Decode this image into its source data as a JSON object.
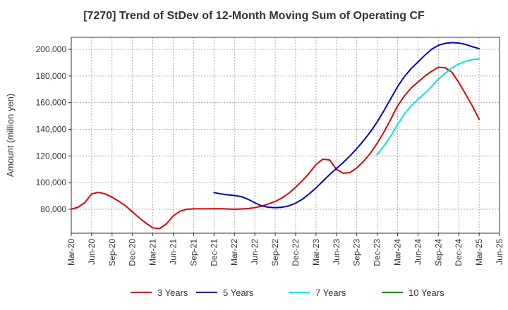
{
  "chart_data": {
    "type": "line",
    "title": "[7270]  Trend of StDev of 12-Month Moving Sum of Operating CF",
    "xlabel": "",
    "ylabel": "Amount (million yen)",
    "x_tick_labels": [
      "Mar-20",
      "Jun-20",
      "Sep-20",
      "Dec-20",
      "Mar-21",
      "Jun-21",
      "Sep-21",
      "Dec-21",
      "Mar-22",
      "Jun-22",
      "Sep-22",
      "Dec-22",
      "Mar-23",
      "Jun-23",
      "Sep-23",
      "Dec-23",
      "Mar-24",
      "Jun-24",
      "Sep-24",
      "Dec-24",
      "Mar-25",
      "Jun-25"
    ],
    "y_tick_labels": [
      "80,000",
      "100,000",
      "120,000",
      "140,000",
      "160,000",
      "180,000",
      "200,000"
    ],
    "y_ticks": [
      80000,
      100000,
      120000,
      140000,
      160000,
      180000,
      200000
    ],
    "ylim": [
      62000,
      209000
    ],
    "xlim": [
      "2020-03",
      "2025-06"
    ],
    "grid": true,
    "legend_position": "bottom",
    "series": [
      {
        "name": "3 Years",
        "color": "#dd0000",
        "x": [
          "2020-03",
          "2020-04",
          "2020-05",
          "2020-06",
          "2020-07",
          "2020-08",
          "2020-09",
          "2020-10",
          "2020-11",
          "2020-12",
          "2021-01",
          "2021-02",
          "2021-03",
          "2021-04",
          "2021-05",
          "2021-06",
          "2021-07",
          "2021-08",
          "2021-09",
          "2021-10",
          "2021-11",
          "2021-12",
          "2022-01",
          "2022-02",
          "2022-03",
          "2022-04",
          "2022-05",
          "2022-06",
          "2022-07",
          "2022-08",
          "2022-09",
          "2022-10",
          "2022-11",
          "2022-12",
          "2023-01",
          "2023-02",
          "2023-03",
          "2023-04",
          "2023-05",
          "2023-06",
          "2023-07",
          "2023-08",
          "2023-09",
          "2023-10",
          "2023-11",
          "2023-12",
          "2024-01",
          "2024-02",
          "2024-03",
          "2024-04",
          "2024-05",
          "2024-06",
          "2024-07",
          "2024-08",
          "2024-09",
          "2024-10",
          "2024-11",
          "2024-12",
          "2025-01",
          "2025-02",
          "2025-03"
        ],
        "values": [
          80000,
          81500,
          85000,
          91500,
          92700,
          91500,
          89000,
          86000,
          82500,
          78000,
          73500,
          69500,
          66000,
          65500,
          69000,
          75000,
          78500,
          80000,
          80300,
          80300,
          80300,
          80400,
          80400,
          80200,
          80000,
          80200,
          80500,
          81200,
          82300,
          84000,
          85800,
          88500,
          92000,
          96500,
          101500,
          107000,
          113500,
          117500,
          117000,
          110000,
          107000,
          107500,
          111000,
          116000,
          122000,
          129500,
          138000,
          147500,
          157500,
          165000,
          171000,
          175500,
          179800,
          183500,
          186500,
          186200,
          182800,
          175200,
          166500,
          157500,
          147500
        ]
      },
      {
        "name": "5 Years",
        "color": "#0000cc",
        "x": [
          "2021-12",
          "2022-01",
          "2022-02",
          "2022-03",
          "2022-04",
          "2022-05",
          "2022-06",
          "2022-07",
          "2022-08",
          "2022-09",
          "2022-10",
          "2022-11",
          "2022-12",
          "2023-01",
          "2023-02",
          "2023-03",
          "2023-04",
          "2023-05",
          "2023-06",
          "2023-07",
          "2023-08",
          "2023-09",
          "2023-10",
          "2023-11",
          "2023-12",
          "2024-01",
          "2024-02",
          "2024-03",
          "2024-04",
          "2024-05",
          "2024-06",
          "2024-07",
          "2024-08",
          "2024-09",
          "2024-10",
          "2024-11",
          "2024-12",
          "2025-01",
          "2025-02",
          "2025-03"
        ],
        "values": [
          92500,
          91500,
          90800,
          90300,
          89500,
          87500,
          84800,
          82500,
          81500,
          81200,
          81500,
          82500,
          84500,
          87500,
          91500,
          96000,
          101000,
          106000,
          110500,
          115000,
          120000,
          125500,
          131500,
          138000,
          145500,
          154000,
          163000,
          172000,
          179500,
          185500,
          190500,
          195500,
          200000,
          203000,
          204500,
          205000,
          204700,
          203700,
          202000,
          200500
        ]
      },
      {
        "name": "7 Years",
        "color": "#00e5e5",
        "x": [
          "2023-12",
          "2024-01",
          "2024-02",
          "2024-03",
          "2024-04",
          "2024-05",
          "2024-06",
          "2024-07",
          "2024-08",
          "2024-09",
          "2024-10",
          "2024-11",
          "2024-12",
          "2025-01",
          "2025-02",
          "2025-03"
        ],
        "values": [
          121000,
          127500,
          135000,
          143500,
          151500,
          157500,
          162500,
          167000,
          172000,
          177500,
          182000,
          186000,
          189000,
          191000,
          192200,
          192800
        ]
      },
      {
        "name": "10 Years",
        "color": "#228822",
        "x": [],
        "values": []
      }
    ]
  }
}
